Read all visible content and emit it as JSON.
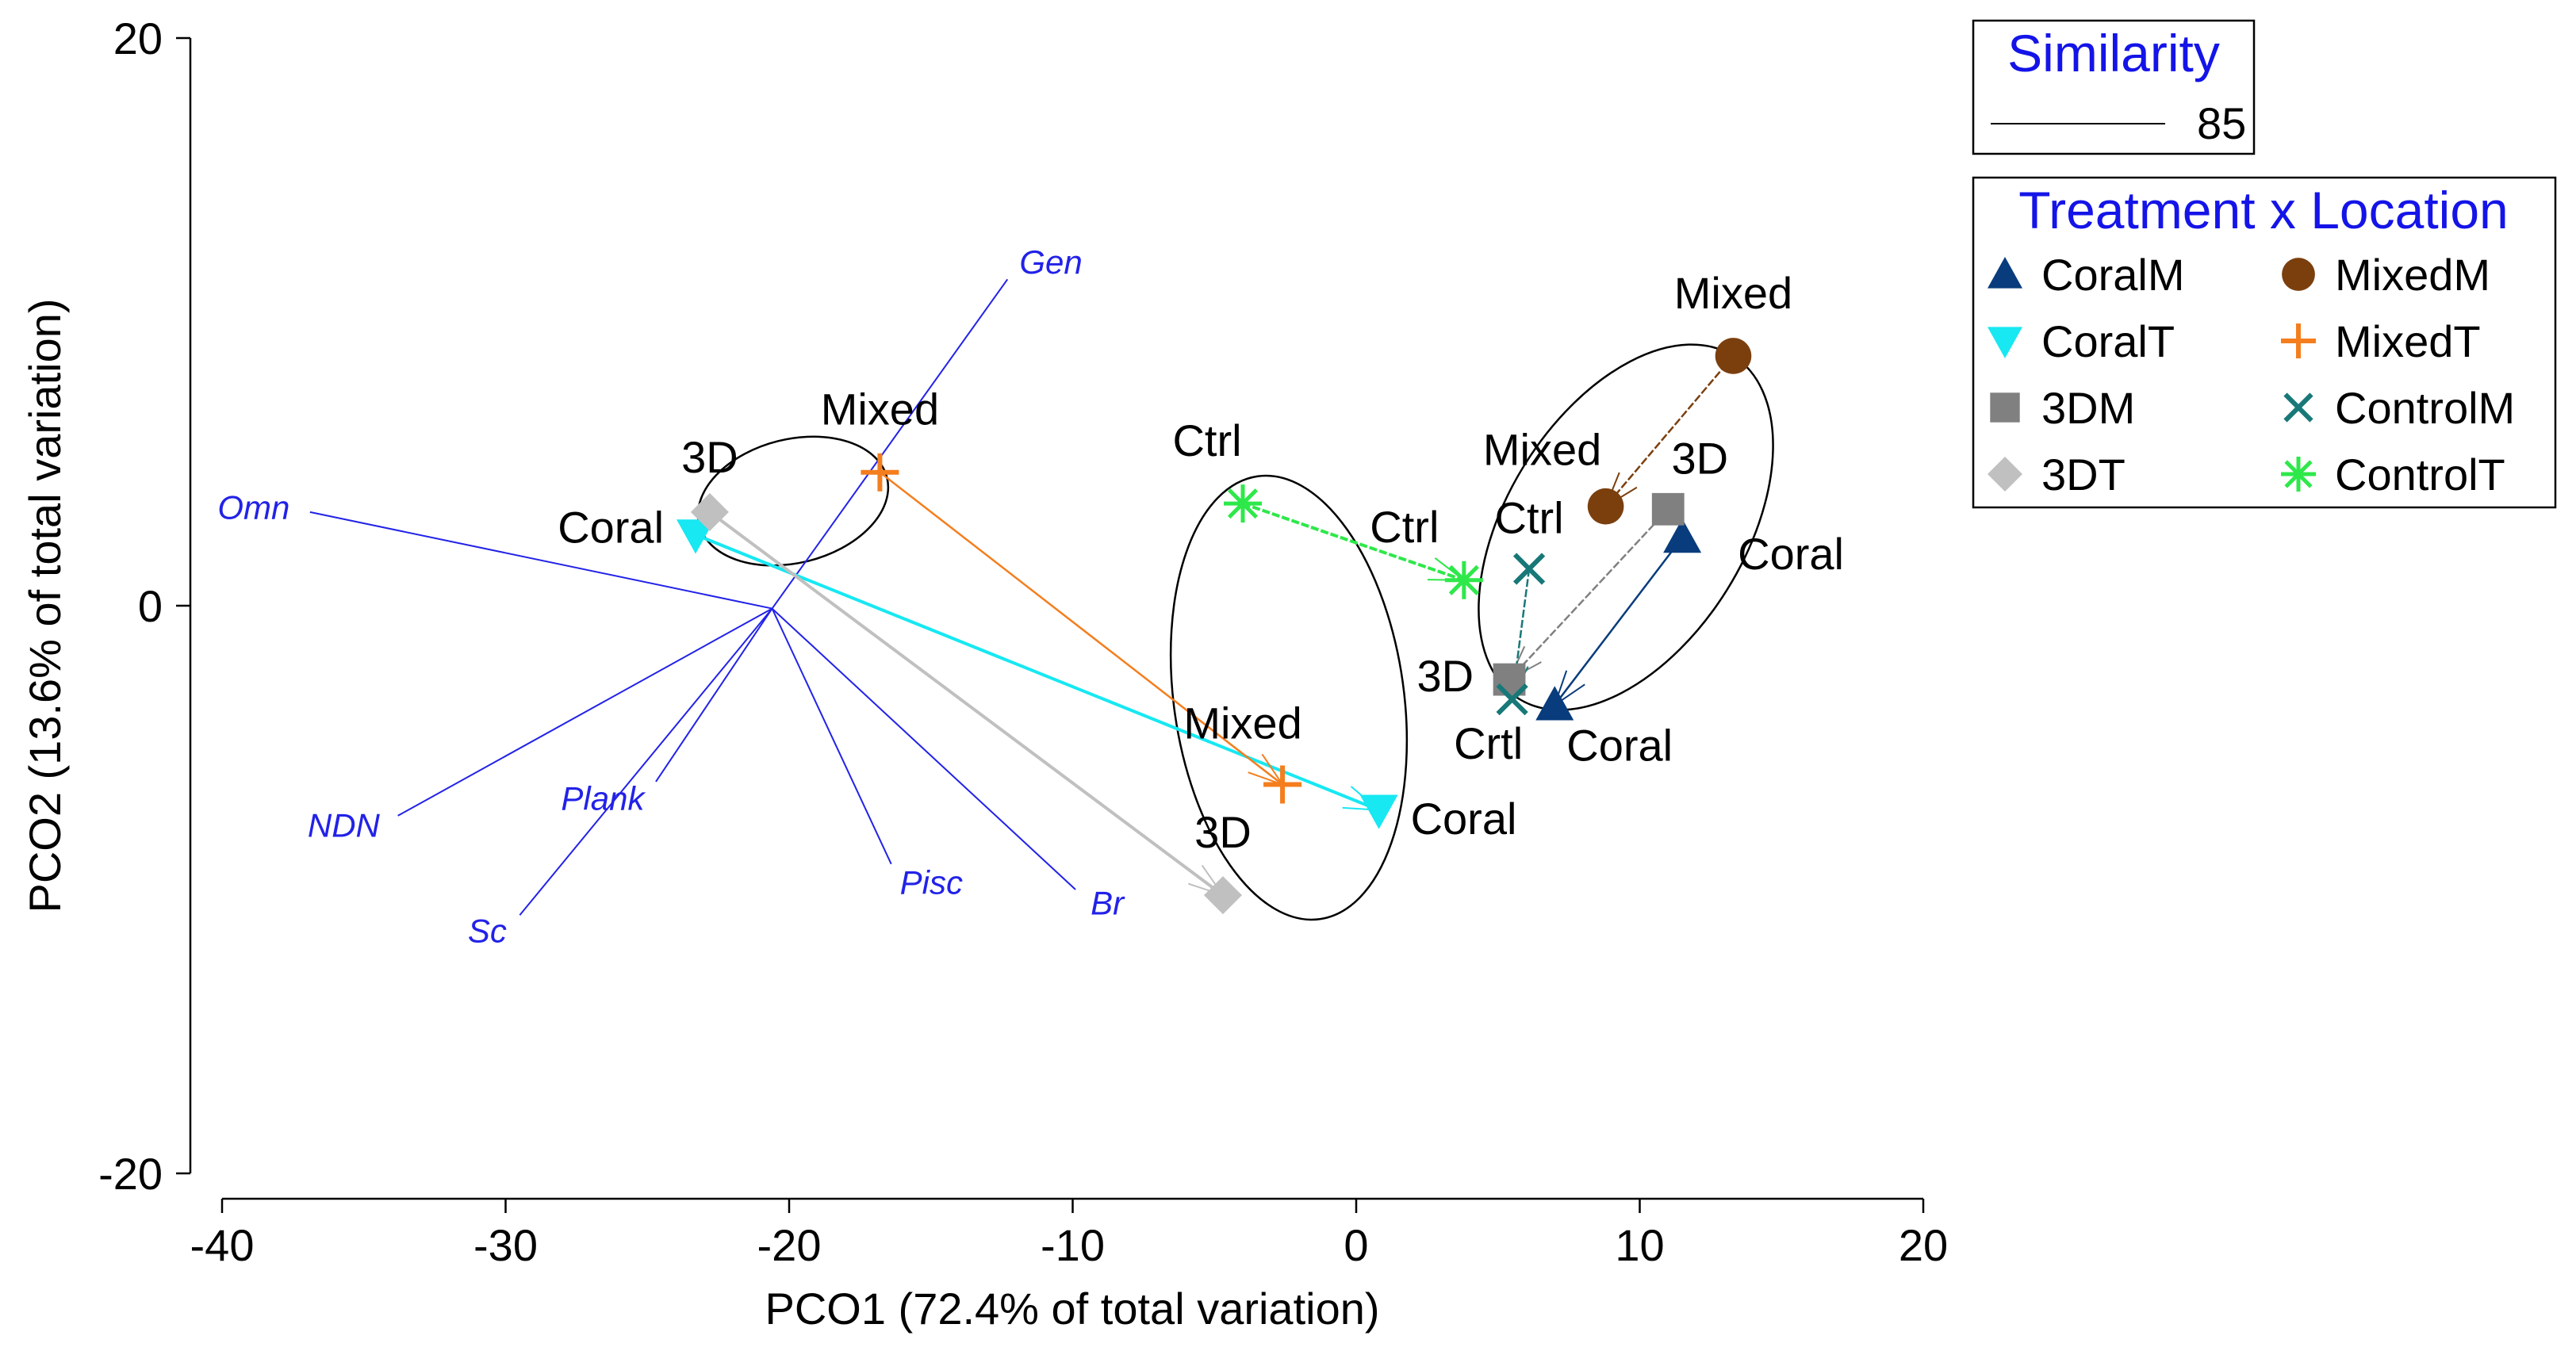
{
  "chart_data": {
    "type": "scatter",
    "title": "",
    "xlabel": "PCO1 (72.4% of total variation)",
    "ylabel": "PCO2 (13.6% of total variation)",
    "xlim": [
      -40,
      20
    ],
    "ylim": [
      -20,
      20
    ],
    "xticks": [
      -40,
      -30,
      -20,
      -10,
      0,
      10,
      20
    ],
    "yticks": [
      -20,
      0,
      20
    ],
    "similarity_legend": {
      "title": "Similarity",
      "value_label": "85"
    },
    "legend_title": "Treatment x Location",
    "series": [
      {
        "name": "CoralM",
        "marker": "triangle-up",
        "color": "#083c7c",
        "points": [
          {
            "x": 11.5,
            "y": 2.4,
            "label": "Coral"
          },
          {
            "x": 7.0,
            "y": -3.5,
            "label": "Coral"
          }
        ]
      },
      {
        "name": "CoralT",
        "marker": "triangle-down",
        "color": "#17e8f2",
        "points": [
          {
            "x": -23.3,
            "y": 2.5,
            "label": "Coral"
          },
          {
            "x": 0.8,
            "y": -7.2,
            "label": "Coral"
          }
        ]
      },
      {
        "name": "3DM",
        "marker": "square",
        "color": "#808080",
        "points": [
          {
            "x": 11.0,
            "y": 3.4,
            "label": "3D"
          },
          {
            "x": 5.4,
            "y": -2.6,
            "label": "3D"
          }
        ]
      },
      {
        "name": "3DT",
        "marker": "diamond",
        "color": "#c0c0c0",
        "points": [
          {
            "x": -22.8,
            "y": 3.3,
            "label": "3D"
          },
          {
            "x": -4.7,
            "y": -10.2,
            "label": "3D"
          }
        ]
      },
      {
        "name": "MixedM",
        "marker": "circle",
        "color": "#7b3f0e",
        "points": [
          {
            "x": 13.3,
            "y": 8.8,
            "label": "Mixed"
          },
          {
            "x": 8.8,
            "y": 3.5,
            "label": "Mixed"
          }
        ]
      },
      {
        "name": "MixedT",
        "marker": "plus",
        "color": "#f47e1e",
        "points": [
          {
            "x": -16.8,
            "y": 4.7,
            "label": "Mixed"
          },
          {
            "x": -2.6,
            "y": -6.3,
            "label": "Mixed"
          }
        ]
      },
      {
        "name": "ControlM",
        "marker": "x",
        "color": "#187878",
        "points": [
          {
            "x": 6.1,
            "y": 1.3,
            "label": "Ctrl"
          },
          {
            "x": 5.5,
            "y": -3.3,
            "label": "Crtl"
          }
        ]
      },
      {
        "name": "ControlT",
        "marker": "asterisk",
        "color": "#2ee84a",
        "points": [
          {
            "x": -4.0,
            "y": 3.6,
            "label": "Ctrl"
          },
          {
            "x": 3.8,
            "y": 0.9,
            "label": "Ctrl"
          }
        ]
      }
    ],
    "trajectories": [
      {
        "series": "CoralM",
        "from": 0,
        "to": 1
      },
      {
        "series": "CoralT",
        "from": 0,
        "to": 1
      },
      {
        "series": "3DM",
        "from": 0,
        "to": 1
      },
      {
        "series": "3DT",
        "from": 0,
        "to": 1
      },
      {
        "series": "MixedM",
        "from": 0,
        "to": 1
      },
      {
        "series": "MixedT",
        "from": 0,
        "to": 1
      },
      {
        "series": "ControlM",
        "from": 0,
        "to": 1
      },
      {
        "series": "ControlT",
        "from": 0,
        "to": 1
      }
    ],
    "vectors": {
      "origin": [
        -20.6,
        -0.1
      ],
      "color": "#2222e8",
      "items": [
        {
          "name": "Gen",
          "x": -12.3,
          "y": 11.5
        },
        {
          "name": "Omn",
          "x": -36.9,
          "y": 3.3
        },
        {
          "name": "NDN",
          "x": -33.8,
          "y": -7.4
        },
        {
          "name": "Sc",
          "x": -29.5,
          "y": -10.9
        },
        {
          "name": "Plank",
          "x": -24.7,
          "y": -6.2
        },
        {
          "name": "Pisc",
          "x": -16.4,
          "y": -9.1
        },
        {
          "name": "Br",
          "x": -9.9,
          "y": -10.0
        }
      ]
    }
  }
}
